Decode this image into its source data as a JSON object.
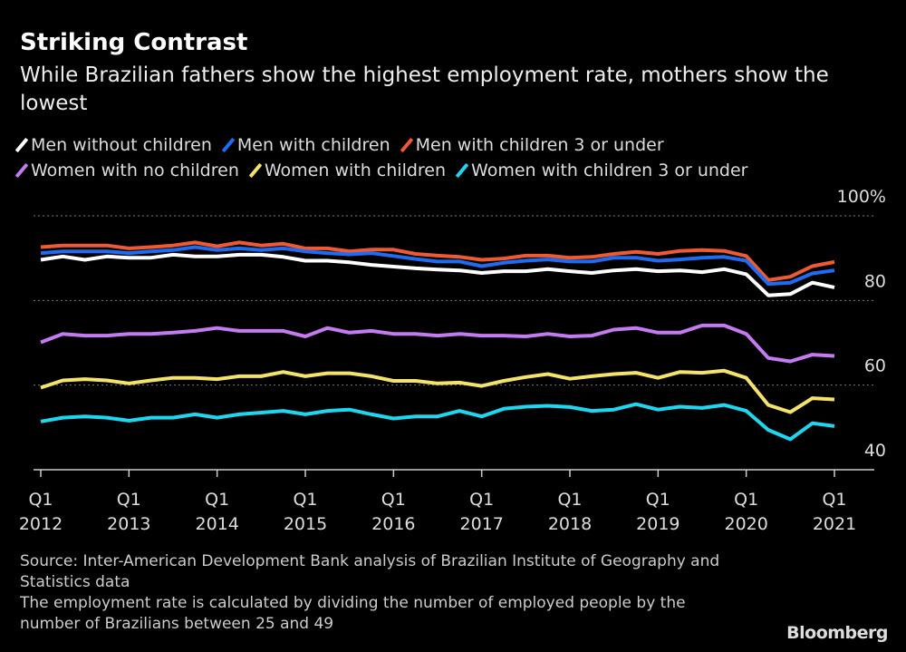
{
  "title": "Striking Contrast",
  "subtitle": "While Brazilian fathers show the highest employment rate, mothers show the lowest",
  "source": "Source: Inter-American Development Bank analysis of Brazilian Institute of Geography and Statistics data",
  "note": "The employment rate is calculated by dividing the number of employed people by the number of Brazilians between 25 and 49",
  "logo": "Bloomberg",
  "chart_data": {
    "type": "line",
    "ylim": [
      40,
      100
    ],
    "yticks": [
      40,
      60,
      80,
      100
    ],
    "ytick_labels": [
      "40",
      "60",
      "80",
      "100%"
    ],
    "xtick_labels": [
      [
        "Q1",
        "2012"
      ],
      [
        "Q1",
        "2013"
      ],
      [
        "Q1",
        "2014"
      ],
      [
        "Q1",
        "2015"
      ],
      [
        "Q1",
        "2016"
      ],
      [
        "Q1",
        "2017"
      ],
      [
        "Q1",
        "2018"
      ],
      [
        "Q1",
        "2019"
      ],
      [
        "Q1",
        "2020"
      ],
      [
        "Q1",
        "2021"
      ]
    ],
    "x_start": "2012 Q1",
    "x_end": "2021 Q1",
    "grid": "horizontal dotted",
    "legend": "top",
    "series": [
      {
        "name": "Men without children",
        "color": "#ffffff",
        "values": [
          89.6,
          90.4,
          89.6,
          90.4,
          90.1,
          90.1,
          90.8,
          90.4,
          90.4,
          90.8,
          90.8,
          90.3,
          89.4,
          89.4,
          89.0,
          88.4,
          88.0,
          87.6,
          87.3,
          87.1,
          86.5,
          86.9,
          86.9,
          87.4,
          86.9,
          86.5,
          87.1,
          87.4,
          86.9,
          87.1,
          86.7,
          87.4,
          86.2,
          81.2,
          81.5,
          84.2,
          83.1
        ]
      },
      {
        "name": "Men with children",
        "color": "#1f6cf2",
        "values": [
          91.2,
          91.6,
          91.6,
          91.6,
          91.2,
          91.6,
          91.9,
          92.6,
          91.9,
          92.3,
          91.9,
          92.3,
          91.6,
          91.2,
          90.9,
          91.2,
          90.5,
          89.8,
          89.2,
          89.2,
          88.1,
          88.9,
          89.4,
          89.7,
          89.2,
          89.2,
          90.1,
          90.1,
          89.4,
          89.7,
          90.1,
          90.3,
          89.4,
          83.9,
          84.2,
          86.4,
          87.1
        ]
      },
      {
        "name": "Men with children 3 or under",
        "color": "#ee5a33",
        "values": [
          92.6,
          93.0,
          93.0,
          93.0,
          92.3,
          92.6,
          93.0,
          93.7,
          92.8,
          93.7,
          93.0,
          93.4,
          92.3,
          92.3,
          91.6,
          92.0,
          92.0,
          91.0,
          90.6,
          90.3,
          89.6,
          89.9,
          90.6,
          90.6,
          90.1,
          90.3,
          91.0,
          91.5,
          91.0,
          91.7,
          91.9,
          91.7,
          90.5,
          84.8,
          85.6,
          88.1,
          89.1
        ]
      },
      {
        "name": "Women with no children",
        "color": "#c47af0",
        "values": [
          70.1,
          72.1,
          71.7,
          71.7,
          72.1,
          72.1,
          72.4,
          72.8,
          73.5,
          72.8,
          72.8,
          72.8,
          71.5,
          73.5,
          72.4,
          72.8,
          72.1,
          72.1,
          71.7,
          72.1,
          71.7,
          71.7,
          71.5,
          72.1,
          71.5,
          71.7,
          73.1,
          73.5,
          72.4,
          72.4,
          74.1,
          74.1,
          72.1,
          66.4,
          65.6,
          67.2,
          66.9
        ]
      },
      {
        "name": "Women with children",
        "color": "#f4e36b",
        "values": [
          59.4,
          61.1,
          61.4,
          61.1,
          60.4,
          61.1,
          61.7,
          61.7,
          61.4,
          62.1,
          62.1,
          63.1,
          62.1,
          62.8,
          62.8,
          62.1,
          61.0,
          61.0,
          60.4,
          60.6,
          59.8,
          61.0,
          61.9,
          62.6,
          61.5,
          62.1,
          62.6,
          62.9,
          61.7,
          63.1,
          62.9,
          63.4,
          61.7,
          55.3,
          53.6,
          56.9,
          56.6
        ]
      },
      {
        "name": "Women with children 3 or under",
        "color": "#1ed6ee",
        "values": [
          51.4,
          52.3,
          52.6,
          52.3,
          51.6,
          52.3,
          52.3,
          53.1,
          52.3,
          53.1,
          53.5,
          53.9,
          53.1,
          53.9,
          54.2,
          53.1,
          52.1,
          52.6,
          52.6,
          53.9,
          52.6,
          54.4,
          54.9,
          55.1,
          54.8,
          53.9,
          54.2,
          55.5,
          54.2,
          54.9,
          54.6,
          55.3,
          53.9,
          49.4,
          47.2,
          51.0,
          50.3
        ]
      }
    ]
  }
}
